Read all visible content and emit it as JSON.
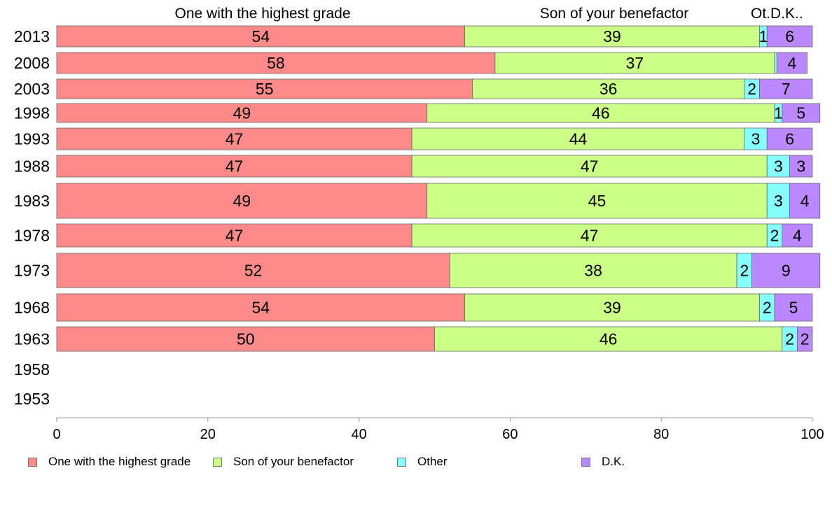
{
  "chart_data": {
    "type": "bar",
    "orientation": "horizontal",
    "stacked": true,
    "categories": [
      "2013",
      "2008",
      "2003",
      "1998",
      "1993",
      "1988",
      "1983",
      "1978",
      "1973",
      "1968",
      "1963",
      "1958",
      "1953"
    ],
    "series": [
      {
        "name": "One with the highest grade",
        "color": "#ff8a8a",
        "values": [
          54,
          58,
          55,
          49,
          47,
          47,
          49,
          47,
          52,
          54,
          50,
          null,
          null
        ]
      },
      {
        "name": "Son of your benefactor",
        "color": "#ccff88",
        "values": [
          39,
          37,
          36,
          46,
          44,
          47,
          45,
          47,
          38,
          39,
          46,
          null,
          null
        ]
      },
      {
        "name": "Other",
        "color": "#88ffff",
        "values": [
          1,
          0.3,
          2,
          1,
          3,
          3,
          3,
          2,
          2,
          2,
          2,
          null,
          null
        ]
      },
      {
        "name": "D.K.",
        "color": "#bb88ff",
        "values": [
          6,
          4,
          7,
          5,
          6,
          3,
          4,
          4,
          9,
          5,
          2,
          null,
          null
        ]
      }
    ],
    "data_labels": [
      [
        "54",
        "39",
        "1",
        "6"
      ],
      [
        "58",
        "37",
        "",
        "4"
      ],
      [
        "55",
        "36",
        "2",
        "7"
      ],
      [
        "49",
        "46",
        "1",
        "5"
      ],
      [
        "47",
        "44",
        "3",
        "6"
      ],
      [
        "47",
        "47",
        "3",
        "3"
      ],
      [
        "49",
        "45",
        "3",
        "4"
      ],
      [
        "47",
        "47",
        "2",
        "4"
      ],
      [
        "52",
        "38",
        "2",
        "9"
      ],
      [
        "54",
        "39",
        "2",
        "5"
      ],
      [
        "50",
        "46",
        "2",
        "2"
      ],
      [
        "",
        "",
        "",
        ""
      ],
      [
        "",
        "",
        "",
        ""
      ]
    ],
    "column_headers": [
      "One with the highest grade",
      "Son of your benefactor",
      "Ot.",
      "D.K.."
    ],
    "xlim": [
      0,
      100
    ],
    "xticks": [
      0,
      20,
      40,
      60,
      80,
      100
    ],
    "grid": false,
    "legend_position": "bottom"
  }
}
